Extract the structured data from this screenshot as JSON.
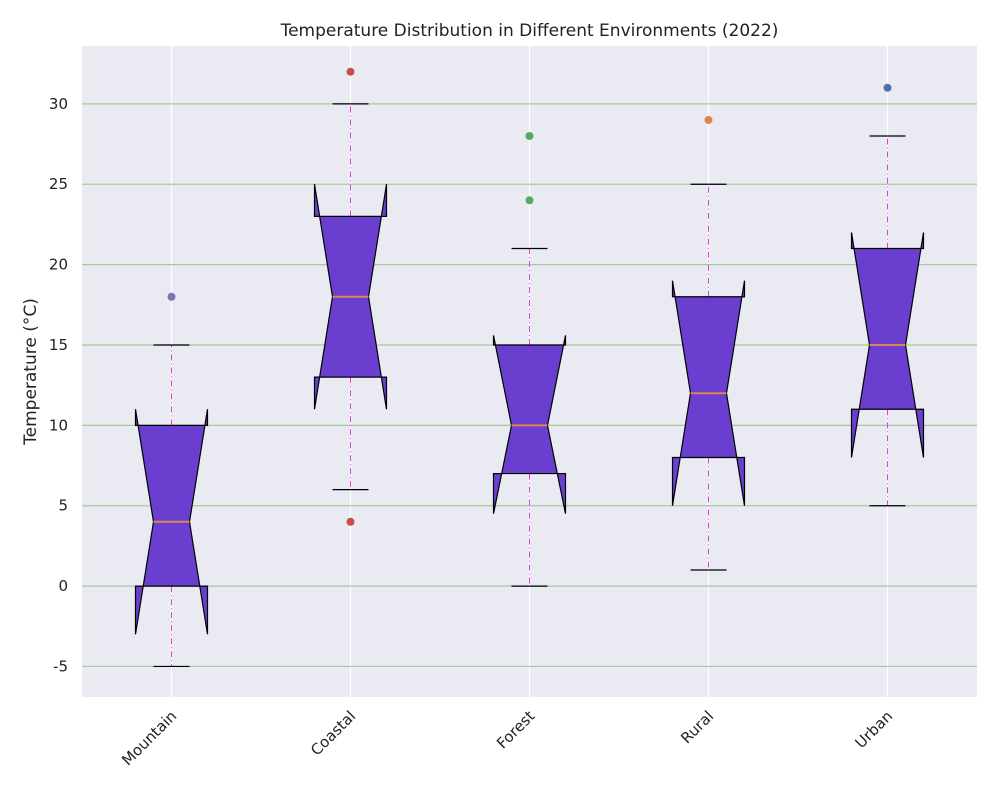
{
  "chart_data": {
    "type": "box",
    "title": "Temperature Distribution in Different Environments (2022)",
    "xlabel": "",
    "ylabel": "Temperature (°C)",
    "ylim": [
      -6.9,
      33.6
    ],
    "yticks": [
      -5,
      0,
      5,
      10,
      15,
      20,
      25,
      30
    ],
    "ytick_labels": [
      "-5",
      "0",
      "5",
      "10",
      "15",
      "20",
      "25",
      "30"
    ],
    "categories": [
      "Mountain",
      "Coastal",
      "Forest",
      "Rural",
      "Urban"
    ],
    "boxes": [
      {
        "category": "Mountain",
        "whisker_low": -5,
        "q1": 0,
        "median": 4,
        "q3": 10,
        "whisker_high": 15,
        "notch_low": -3,
        "notch_high": 11,
        "outliers": [
          18
        ],
        "outlier_color": "#8172b3"
      },
      {
        "category": "Coastal",
        "whisker_low": 6,
        "q1": 13,
        "median": 18,
        "q3": 23,
        "whisker_high": 30,
        "notch_low": 11,
        "notch_high": 25,
        "outliers": [
          32,
          4
        ],
        "outlier_color": "#c44e52"
      },
      {
        "category": "Forest",
        "whisker_low": 0,
        "q1": 7,
        "median": 10,
        "q3": 15,
        "whisker_high": 21,
        "notch_low": 4.5,
        "notch_high": 15.6,
        "outliers": [
          28,
          24
        ],
        "outlier_color": "#55a868"
      },
      {
        "category": "Rural",
        "whisker_low": 1,
        "q1": 8,
        "median": 12,
        "q3": 18,
        "whisker_high": 25,
        "notch_low": 5,
        "notch_high": 19,
        "outliers": [
          29
        ],
        "outlier_color": "#dd8452"
      },
      {
        "category": "Urban",
        "whisker_low": 5,
        "q1": 11,
        "median": 15,
        "q3": 21,
        "whisker_high": 28,
        "notch_low": 8,
        "notch_high": 22,
        "outliers": [
          31
        ],
        "outlier_color": "#4c72b0"
      }
    ],
    "colors": {
      "box_fill": "#6a3fcf",
      "box_edge": "#000000",
      "median": "#dd8452",
      "whisker": "#e040e0",
      "cap": "#000000",
      "grid_y": "#a3cc9c",
      "grid_x": "#ffffff",
      "plot_bg": "#eaeaf2"
    },
    "grid": true
  }
}
